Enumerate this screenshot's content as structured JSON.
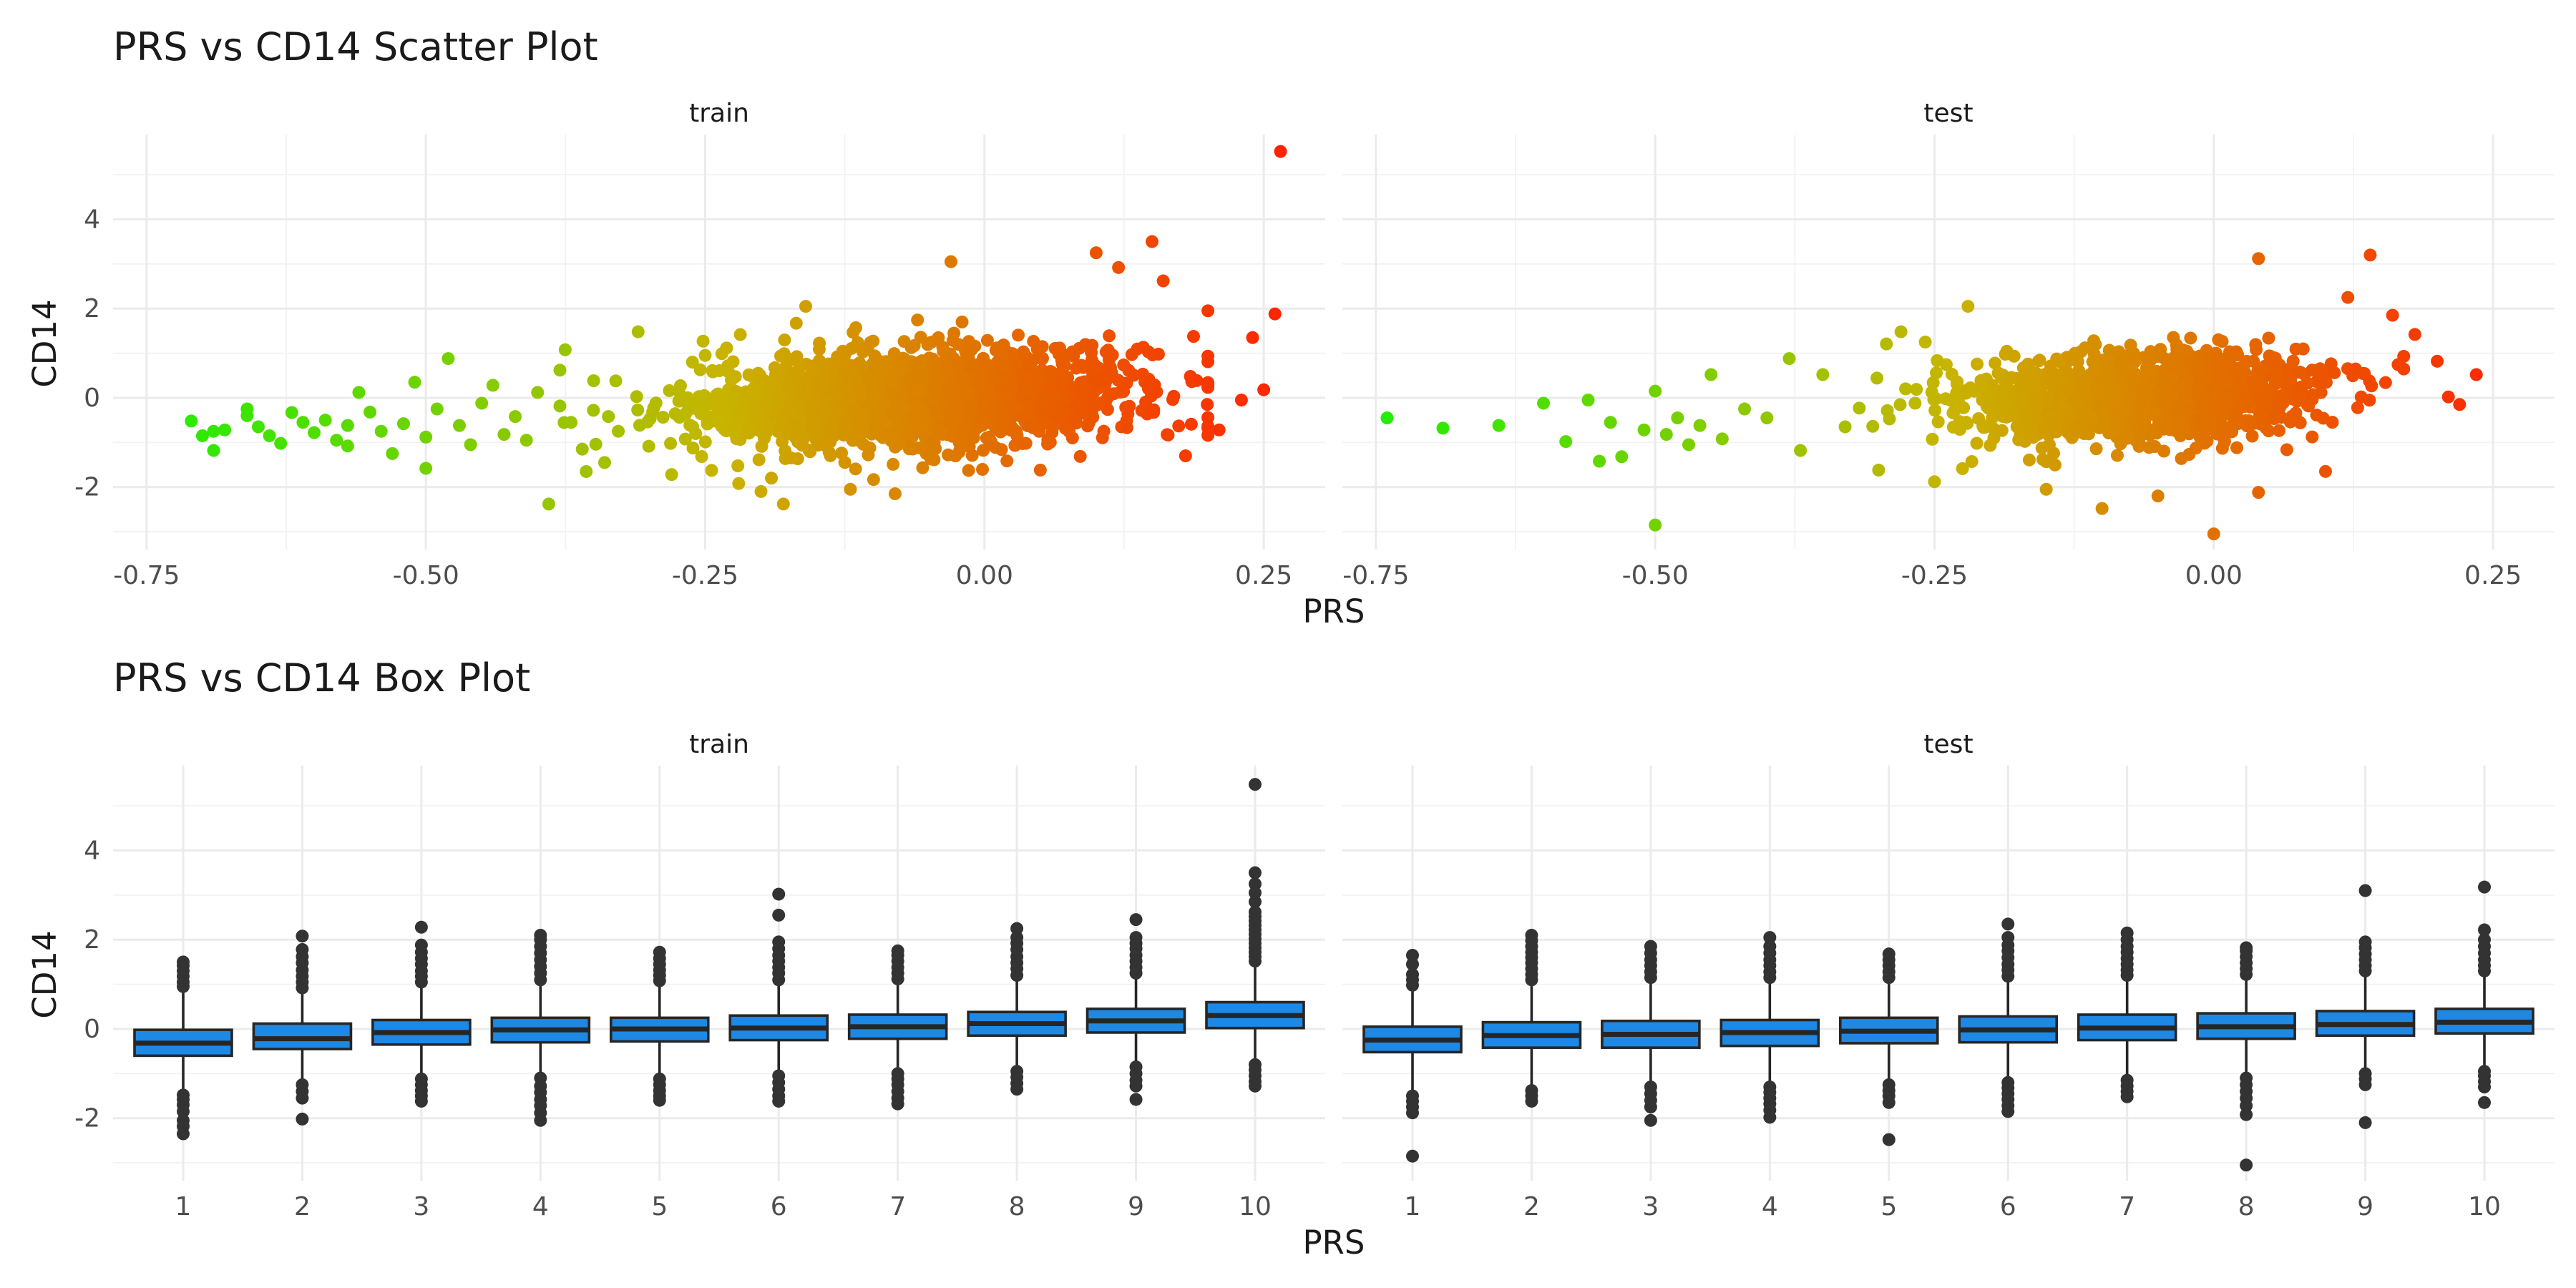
{
  "chart_data": [
    {
      "type": "scatter",
      "title": "PRS vs CD14 Scatter Plot",
      "xlabel": "PRS",
      "ylabel": "CD14",
      "xlim": [
        -0.78,
        0.305
      ],
      "ylim": [
        -3.4,
        5.9
      ],
      "x_ticks": [
        -0.75,
        -0.5,
        -0.25,
        0.0,
        0.25
      ],
      "x_tick_labels": [
        "-0.75",
        "-0.50",
        "-0.25",
        "0.00",
        "0.25"
      ],
      "y_ticks": [
        -2,
        0,
        2,
        4
      ],
      "y_tick_labels": [
        "-2",
        "0",
        "2",
        "4"
      ],
      "grid": true,
      "color_scale": {
        "variable": "PRS",
        "low": "#22ee00",
        "mid": "#c8b400",
        "high": "#ff2200"
      },
      "facets": [
        {
          "name": "train",
          "density_sample": {
            "n": 1700,
            "x_center": -0.06,
            "x_sd": 0.1,
            "slope": 1.2,
            "y_sd": 0.55,
            "x_min": -0.38,
            "x_max": 0.2
          },
          "points": [
            [
              -0.71,
              -0.52
            ],
            [
              -0.7,
              -0.85
            ],
            [
              -0.69,
              -1.18
            ],
            [
              -0.69,
              -0.75
            ],
            [
              -0.68,
              -0.72
            ],
            [
              -0.66,
              -0.25
            ],
            [
              -0.66,
              -0.4
            ],
            [
              -0.65,
              -0.65
            ],
            [
              -0.64,
              -0.85
            ],
            [
              -0.63,
              -1.02
            ],
            [
              -0.62,
              -0.33
            ],
            [
              -0.61,
              -0.55
            ],
            [
              -0.6,
              -0.78
            ],
            [
              -0.59,
              -0.5
            ],
            [
              -0.58,
              -0.95
            ],
            [
              -0.57,
              -1.08
            ],
            [
              -0.57,
              -0.62
            ],
            [
              -0.56,
              0.12
            ],
            [
              -0.55,
              -0.32
            ],
            [
              -0.54,
              -0.75
            ],
            [
              -0.53,
              -1.25
            ],
            [
              -0.52,
              -0.58
            ],
            [
              -0.51,
              0.35
            ],
            [
              -0.5,
              -1.58
            ],
            [
              -0.5,
              -0.88
            ],
            [
              -0.49,
              -0.25
            ],
            [
              -0.48,
              0.88
            ],
            [
              -0.47,
              -0.62
            ],
            [
              -0.46,
              -1.05
            ],
            [
              -0.45,
              -0.12
            ],
            [
              -0.44,
              0.28
            ],
            [
              -0.43,
              -0.82
            ],
            [
              -0.42,
              -0.42
            ],
            [
              -0.41,
              -0.95
            ],
            [
              -0.4,
              0.12
            ],
            [
              -0.39,
              -2.38
            ],
            [
              -0.38,
              0.62
            ],
            [
              -0.37,
              -0.55
            ],
            [
              -0.36,
              -1.15
            ],
            [
              -0.35,
              -0.28
            ],
            [
              -0.34,
              -1.45
            ],
            [
              -0.33,
              0.38
            ],
            [
              -0.31,
              1.48
            ],
            [
              -0.28,
              -1.72
            ],
            [
              -0.25,
              0.95
            ],
            [
              -0.22,
              -1.92
            ],
            [
              -0.2,
              -2.1
            ],
            [
              -0.18,
              -2.38
            ],
            [
              -0.16,
              2.05
            ],
            [
              -0.12,
              -2.05
            ],
            [
              -0.08,
              -2.15
            ],
            [
              -0.03,
              3.05
            ],
            [
              0.05,
              -1.62
            ],
            [
              0.1,
              3.25
            ],
            [
              0.15,
              3.5
            ],
            [
              0.12,
              2.92
            ],
            [
              0.16,
              2.62
            ],
            [
              0.18,
              -1.3
            ],
            [
              0.2,
              1.95
            ],
            [
              0.21,
              -0.72
            ],
            [
              0.23,
              -0.05
            ],
            [
              0.24,
              1.35
            ],
            [
              0.25,
              0.18
            ],
            [
              0.26,
              1.88
            ],
            [
              0.265,
              5.52
            ]
          ]
        },
        {
          "name": "test",
          "density_sample": {
            "n": 1200,
            "x_center": -0.07,
            "x_sd": 0.085,
            "slope": 1.0,
            "y_sd": 0.5,
            "x_min": -0.33,
            "x_max": 0.17
          },
          "points": [
            [
              -0.74,
              -0.45
            ],
            [
              -0.69,
              -0.68
            ],
            [
              -0.64,
              -0.62
            ],
            [
              -0.6,
              -0.12
            ],
            [
              -0.58,
              -0.98
            ],
            [
              -0.56,
              -0.05
            ],
            [
              -0.55,
              -1.42
            ],
            [
              -0.54,
              -0.55
            ],
            [
              -0.53,
              -1.32
            ],
            [
              -0.51,
              -0.72
            ],
            [
              -0.5,
              0.15
            ],
            [
              -0.5,
              -2.85
            ],
            [
              -0.49,
              -0.82
            ],
            [
              -0.48,
              -0.45
            ],
            [
              -0.47,
              -1.05
            ],
            [
              -0.46,
              -0.62
            ],
            [
              -0.45,
              0.52
            ],
            [
              -0.44,
              -0.92
            ],
            [
              -0.42,
              -0.25
            ],
            [
              -0.4,
              -0.45
            ],
            [
              -0.38,
              0.88
            ],
            [
              -0.37,
              -1.18
            ],
            [
              -0.35,
              0.52
            ],
            [
              -0.33,
              -0.65
            ],
            [
              -0.3,
              -1.62
            ],
            [
              -0.28,
              1.48
            ],
            [
              -0.25,
              -1.88
            ],
            [
              -0.22,
              2.05
            ],
            [
              -0.15,
              -2.05
            ],
            [
              -0.1,
              -2.48
            ],
            [
              -0.05,
              -2.2
            ],
            [
              0.0,
              -3.05
            ],
            [
              0.04,
              -2.12
            ],
            [
              0.04,
              3.12
            ],
            [
              0.1,
              -1.65
            ],
            [
              0.12,
              2.25
            ],
            [
              0.14,
              3.2
            ],
            [
              0.16,
              1.85
            ],
            [
              0.18,
              1.42
            ],
            [
              0.2,
              0.82
            ],
            [
              0.21,
              0.02
            ],
            [
              0.22,
              -0.15
            ],
            [
              0.235,
              0.52
            ]
          ]
        }
      ]
    },
    {
      "type": "box",
      "title": "PRS vs CD14 Box Plot",
      "xlabel": "PRS",
      "ylabel": "CD14",
      "categories": [
        "1",
        "2",
        "3",
        "4",
        "5",
        "6",
        "7",
        "8",
        "9",
        "10"
      ],
      "ylim": [
        -3.4,
        5.9
      ],
      "y_ticks": [
        -2,
        0,
        2,
        4
      ],
      "y_tick_labels": [
        "-2",
        "0",
        "2",
        "4"
      ],
      "fill": "#1e88e5",
      "grid": true,
      "facets": [
        {
          "name": "train",
          "boxes": [
            {
              "q1": -0.6,
              "median": -0.32,
              "q3": -0.02,
              "lower": -1.38,
              "upper": 0.85,
              "outliers": [
                -1.48,
                -1.58,
                -1.7,
                -1.85,
                -2.05,
                -2.18,
                -2.35,
                0.95,
                1.05,
                1.18,
                1.3,
                1.42,
                1.5
              ]
            },
            {
              "q1": -0.45,
              "median": -0.22,
              "q3": 0.12,
              "lower": -1.15,
              "upper": 0.82,
              "outliers": [
                -1.25,
                -1.4,
                -1.55,
                -2.02,
                0.92,
                1.05,
                1.18,
                1.32,
                1.48,
                1.62,
                1.78,
                2.08
              ]
            },
            {
              "q1": -0.35,
              "median": -0.08,
              "q3": 0.2,
              "lower": -1.05,
              "upper": 0.95,
              "outliers": [
                -1.12,
                -1.25,
                -1.38,
                -1.5,
                -1.62,
                1.05,
                1.18,
                1.3,
                1.45,
                1.58,
                1.72,
                1.88,
                2.28
              ]
            },
            {
              "q1": -0.3,
              "median": -0.02,
              "q3": 0.25,
              "lower": -1.0,
              "upper": 1.0,
              "outliers": [
                -1.1,
                -1.28,
                -1.42,
                -1.58,
                -1.72,
                -1.88,
                -2.05,
                1.1,
                1.25,
                1.4,
                1.55,
                1.7,
                1.85,
                2.0,
                2.1
              ]
            },
            {
              "q1": -0.28,
              "median": 0.0,
              "q3": 0.25,
              "lower": -1.0,
              "upper": 0.98,
              "outliers": [
                -1.12,
                -1.25,
                -1.38,
                -1.5,
                -1.6,
                1.08,
                1.2,
                1.32,
                1.45,
                1.58,
                1.72
              ]
            },
            {
              "q1": -0.25,
              "median": 0.02,
              "q3": 0.3,
              "lower": -0.95,
              "upper": 1.0,
              "outliers": [
                -1.05,
                -1.2,
                -1.35,
                -1.5,
                -1.62,
                1.1,
                1.25,
                1.38,
                1.52,
                1.65,
                1.8,
                1.95,
                2.55,
                3.02
              ]
            },
            {
              "q1": -0.22,
              "median": 0.05,
              "q3": 0.32,
              "lower": -0.92,
              "upper": 1.02,
              "outliers": [
                -1.0,
                -1.12,
                -1.25,
                -1.4,
                -1.55,
                -1.68,
                1.12,
                1.25,
                1.38,
                1.52,
                1.65,
                1.75
              ]
            },
            {
              "q1": -0.15,
              "median": 0.12,
              "q3": 0.38,
              "lower": -0.85,
              "upper": 1.1,
              "outliers": [
                -0.95,
                -1.08,
                -1.22,
                -1.35,
                1.2,
                1.35,
                1.48,
                1.62,
                1.78,
                1.92,
                2.05,
                2.25
              ]
            },
            {
              "q1": -0.08,
              "median": 0.18,
              "q3": 0.45,
              "lower": -0.75,
              "upper": 1.15,
              "outliers": [
                -0.85,
                -1.0,
                -1.15,
                -1.28,
                -1.58,
                1.25,
                1.38,
                1.52,
                1.65,
                1.8,
                1.92,
                2.05,
                2.45
              ]
            },
            {
              "q1": 0.02,
              "median": 0.3,
              "q3": 0.6,
              "lower": -0.68,
              "upper": 1.42,
              "outliers": [
                -0.8,
                -0.92,
                -1.05,
                -1.18,
                -1.28,
                1.52,
                1.62,
                1.72,
                1.82,
                1.92,
                2.02,
                2.12,
                2.22,
                2.32,
                2.42,
                2.52,
                2.62,
                2.85,
                3.05,
                3.25,
                3.5,
                5.48
              ]
            }
          ]
        },
        {
          "name": "test",
          "boxes": [
            {
              "q1": -0.52,
              "median": -0.25,
              "q3": 0.05,
              "lower": -1.4,
              "upper": 0.9,
              "outliers": [
                -1.5,
                -1.62,
                -1.75,
                -1.88,
                -2.85,
                0.98,
                1.1,
                1.22,
                1.45,
                1.65
              ]
            },
            {
              "q1": -0.42,
              "median": -0.15,
              "q3": 0.15,
              "lower": -1.25,
              "upper": 1.0,
              "outliers": [
                -1.38,
                -1.5,
                -1.62,
                1.1,
                1.22,
                1.35,
                1.48,
                1.6,
                1.72,
                1.85,
                1.98,
                2.1
              ]
            },
            {
              "q1": -0.42,
              "median": -0.12,
              "q3": 0.18,
              "lower": -1.2,
              "upper": 1.05,
              "outliers": [
                -1.3,
                -1.45,
                -1.6,
                -1.75,
                -2.05,
                1.15,
                1.28,
                1.42,
                1.55,
                1.7,
                1.85
              ]
            },
            {
              "q1": -0.38,
              "median": -0.08,
              "q3": 0.2,
              "lower": -1.2,
              "upper": 1.05,
              "outliers": [
                -1.3,
                -1.42,
                -1.55,
                -1.68,
                -1.82,
                -1.98,
                1.15,
                1.28,
                1.42,
                1.55,
                1.7,
                1.85,
                2.05
              ]
            },
            {
              "q1": -0.32,
              "median": -0.05,
              "q3": 0.25,
              "lower": -1.15,
              "upper": 1.05,
              "outliers": [
                -1.25,
                -1.38,
                -1.5,
                -1.65,
                -2.48,
                1.15,
                1.28,
                1.42,
                1.55,
                1.68
              ]
            },
            {
              "q1": -0.3,
              "median": -0.02,
              "q3": 0.28,
              "lower": -1.1,
              "upper": 1.08,
              "outliers": [
                -1.2,
                -1.32,
                -1.45,
                -1.58,
                -1.72,
                -1.85,
                1.18,
                1.32,
                1.45,
                1.6,
                1.75,
                1.88,
                2.05,
                2.35
              ]
            },
            {
              "q1": -0.25,
              "median": 0.02,
              "q3": 0.32,
              "lower": -1.05,
              "upper": 1.1,
              "outliers": [
                -1.15,
                -1.28,
                -1.4,
                -1.52,
                1.2,
                1.32,
                1.45,
                1.58,
                1.72,
                1.85,
                2.0,
                2.15
              ]
            },
            {
              "q1": -0.22,
              "median": 0.05,
              "q3": 0.35,
              "lower": -1.0,
              "upper": 1.12,
              "outliers": [
                -1.1,
                -1.25,
                -1.4,
                -1.55,
                -1.72,
                -1.92,
                -3.05,
                1.22,
                1.35,
                1.48,
                1.62,
                1.75,
                1.82
              ]
            },
            {
              "q1": -0.15,
              "median": 0.1,
              "q3": 0.4,
              "lower": -0.9,
              "upper": 1.18,
              "outliers": [
                -1.0,
                -1.12,
                -1.25,
                -2.1,
                1.3,
                1.42,
                1.55,
                1.68,
                1.82,
                1.95,
                3.1
              ]
            },
            {
              "q1": -0.1,
              "median": 0.15,
              "q3": 0.45,
              "lower": -0.85,
              "upper": 1.2,
              "outliers": [
                -0.95,
                -1.05,
                -1.18,
                -1.3,
                -1.65,
                1.3,
                1.42,
                1.55,
                1.7,
                1.85,
                2.0,
                2.22,
                3.18
              ]
            }
          ]
        }
      ]
    }
  ]
}
